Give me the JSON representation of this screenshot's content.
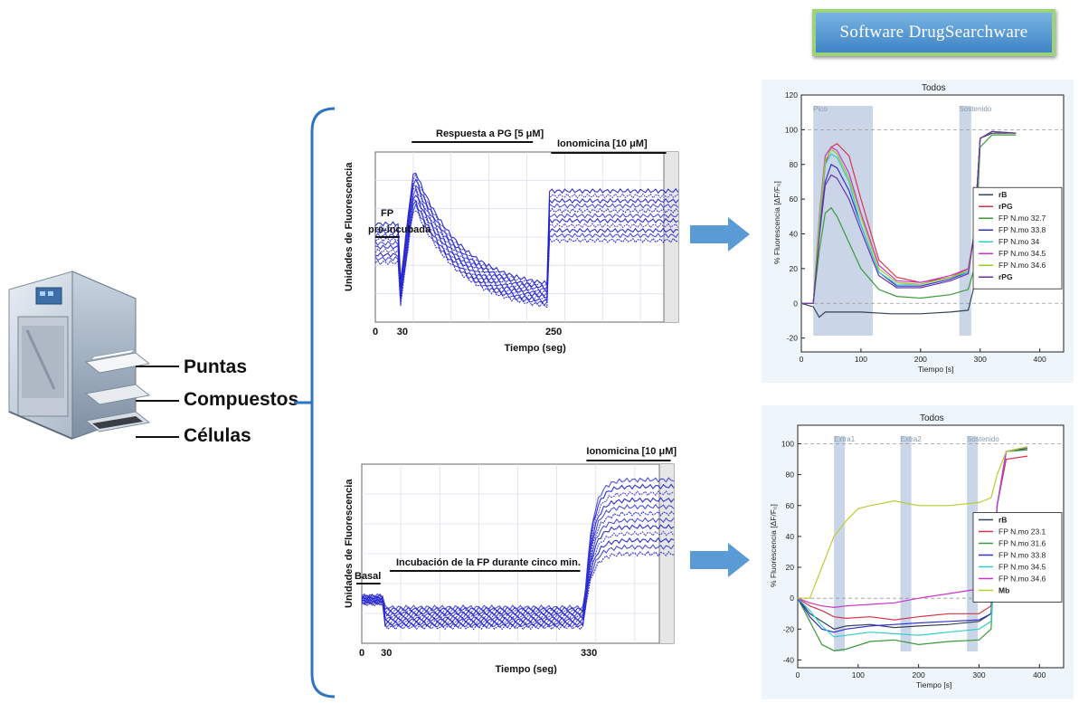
{
  "badge": {
    "label": "Software DrugSearchware"
  },
  "machine": {
    "labels": [
      "Puntas",
      "Compuestos",
      "Células"
    ]
  },
  "colors": {
    "accent_arrow": "#5b9bd5",
    "bracket": "#2f74c0",
    "trace": "#1b1bcc",
    "band": "#b8c8e0"
  },
  "top_trace": {
    "ylabel": "Unidades de Fluorescencia",
    "xlabel": "Tiempo (seg)",
    "xticks": [
      "0",
      "30",
      "250"
    ],
    "annotations": [
      "Respuesta a PG  [5 μM]",
      "Ionomicina  [10 μM]",
      "FP",
      "pre-incubada"
    ]
  },
  "bottom_trace": {
    "ylabel": "Unidades de Fluorescencia",
    "xlabel": "Tiempo (seg)",
    "xticks": [
      "0",
      "30",
      "330"
    ],
    "annotations": [
      "Ionomicina  [10 μM]",
      "Incubación de la FP durante cinco min.",
      "Basal"
    ]
  },
  "chart_data": [
    {
      "type": "line",
      "title": "Todos",
      "xlabel": "Tiempo [s]",
      "ylabel": "% Fluorescencia [ΔF/F₀]",
      "xlim": [
        0,
        440
      ],
      "ylim": [
        -28,
        120
      ],
      "xticks": [
        0,
        100,
        200,
        300,
        400
      ],
      "yticks": [
        -20,
        0,
        20,
        40,
        60,
        80,
        100,
        120
      ],
      "regions": [
        {
          "label": "Pico",
          "x": [
            20,
            120
          ]
        },
        {
          "label": "Sostenido",
          "x": [
            265,
            285
          ]
        }
      ],
      "legend_position": "right",
      "series": [
        {
          "name": "rB",
          "color": "#334455",
          "x": [
            0,
            20,
            30,
            40,
            60,
            100,
            150,
            200,
            250,
            280,
            290,
            300,
            320,
            360
          ],
          "y": [
            0,
            -2,
            -8,
            -5,
            -5,
            -5,
            -6,
            -6,
            -5,
            -4,
            10,
            95,
            98,
            98
          ]
        },
        {
          "name": "rPG",
          "color": "#d8344a",
          "x": [
            0,
            20,
            30,
            40,
            50,
            60,
            80,
            100,
            130,
            160,
            200,
            250,
            280,
            290,
            300,
            320,
            360
          ],
          "y": [
            0,
            0,
            40,
            80,
            90,
            92,
            85,
            60,
            25,
            15,
            12,
            15,
            20,
            40,
            95,
            99,
            98
          ]
        },
        {
          "name": "FP  N.mo 32.7",
          "color": "#3a9a3a",
          "x": [
            0,
            20,
            30,
            40,
            50,
            60,
            80,
            100,
            130,
            160,
            200,
            250,
            280,
            290,
            300,
            320,
            360
          ],
          "y": [
            0,
            0,
            30,
            52,
            55,
            50,
            35,
            20,
            8,
            4,
            3,
            5,
            8,
            20,
            90,
            97,
            97
          ]
        },
        {
          "name": "FP  N.mo 33.8",
          "color": "#3333cc",
          "x": [
            0,
            20,
            30,
            40,
            50,
            60,
            80,
            100,
            130,
            160,
            200,
            250,
            280,
            290,
            300,
            320,
            360
          ],
          "y": [
            0,
            0,
            40,
            70,
            80,
            78,
            65,
            45,
            18,
            10,
            10,
            14,
            18,
            40,
            95,
            99,
            98
          ]
        },
        {
          "name": "FP  N.mo 34",
          "color": "#33cccc",
          "x": [
            0,
            20,
            30,
            40,
            50,
            60,
            80,
            100,
            130,
            160,
            200,
            250,
            280,
            290,
            300,
            320,
            360
          ],
          "y": [
            0,
            0,
            45,
            80,
            86,
            84,
            70,
            45,
            18,
            11,
            11,
            15,
            18,
            40,
            95,
            99,
            98
          ]
        },
        {
          "name": "FP  N.mo 34.5",
          "color": "#cc33cc",
          "x": [
            0,
            20,
            30,
            40,
            50,
            60,
            80,
            100,
            130,
            160,
            200,
            250,
            280,
            290,
            300,
            320,
            360
          ],
          "y": [
            0,
            0,
            50,
            85,
            90,
            88,
            75,
            52,
            22,
            13,
            12,
            16,
            20,
            40,
            95,
            99,
            98
          ]
        },
        {
          "name": "FP  N.mo 34.6",
          "color": "#99cc22",
          "x": [
            0,
            20,
            30,
            40,
            50,
            60,
            80,
            100,
            130,
            160,
            200,
            250,
            280,
            290,
            300,
            320,
            360
          ],
          "y": [
            0,
            0,
            48,
            82,
            89,
            86,
            72,
            50,
            20,
            12,
            11,
            15,
            19,
            40,
            95,
            99,
            98
          ]
        },
        {
          "name": "rPG",
          "color": "#6633aa",
          "x": [
            0,
            20,
            30,
            40,
            50,
            60,
            80,
            100,
            130,
            160,
            200,
            250,
            280,
            290,
            300,
            320,
            360
          ],
          "y": [
            0,
            0,
            38,
            68,
            74,
            72,
            60,
            42,
            16,
            9,
            9,
            13,
            17,
            40,
            95,
            99,
            98
          ]
        }
      ]
    },
    {
      "type": "line",
      "title": "Todos",
      "xlabel": "Tiempo [s]",
      "ylabel": "% Fluorescencia [ΔF/F₀]",
      "xlim": [
        0,
        440
      ],
      "ylim": [
        -45,
        112
      ],
      "xticks": [
        0,
        100,
        200,
        300,
        400
      ],
      "yticks": [
        -40,
        -20,
        0,
        20,
        40,
        60,
        80,
        100
      ],
      "regions": [
        {
          "label": "Extra1",
          "x": [
            60,
            78
          ]
        },
        {
          "label": "Extra2",
          "x": [
            170,
            188
          ]
        },
        {
          "label": "Sostenido",
          "x": [
            280,
            298
          ]
        }
      ],
      "legend_position": "right",
      "series": [
        {
          "name": "rB",
          "color": "#334455",
          "x": [
            0,
            20,
            40,
            60,
            80,
            120,
            160,
            200,
            250,
            300,
            320,
            330,
            345,
            380
          ],
          "y": [
            0,
            -10,
            -15,
            -20,
            -18,
            -17,
            -19,
            -18,
            -17,
            -15,
            -10,
            60,
            95,
            97
          ]
        },
        {
          "name": "FP  N.mo 23.1",
          "color": "#d8344a",
          "x": [
            0,
            20,
            40,
            60,
            80,
            120,
            160,
            200,
            250,
            300,
            320,
            330,
            345,
            380
          ],
          "y": [
            0,
            -5,
            -8,
            -12,
            -13,
            -12,
            -14,
            -12,
            -10,
            -10,
            -5,
            60,
            90,
            92
          ]
        },
        {
          "name": "FP  N.mo 31.6",
          "color": "#3a9a3a",
          "x": [
            0,
            20,
            40,
            60,
            80,
            120,
            160,
            200,
            250,
            300,
            320,
            330,
            345,
            380
          ],
          "y": [
            0,
            -15,
            -30,
            -34,
            -33,
            -28,
            -27,
            -30,
            -28,
            -27,
            -20,
            60,
            95,
            96
          ]
        },
        {
          "name": "FP  N.mo 33.8",
          "color": "#3333cc",
          "x": [
            0,
            20,
            40,
            60,
            80,
            120,
            160,
            200,
            250,
            300,
            320,
            330,
            345,
            380
          ],
          "y": [
            0,
            -12,
            -20,
            -22,
            -20,
            -18,
            -17,
            -16,
            -15,
            -14,
            -10,
            60,
            95,
            98
          ]
        },
        {
          "name": "FP  N.mo 34.5",
          "color": "#33cccc",
          "x": [
            0,
            20,
            40,
            60,
            80,
            120,
            160,
            200,
            250,
            300,
            320,
            330,
            345,
            380
          ],
          "y": [
            0,
            -8,
            -18,
            -25,
            -24,
            -22,
            -23,
            -24,
            -22,
            -20,
            -15,
            60,
            95,
            98
          ]
        },
        {
          "name": "FP  N.mo 34.6",
          "color": "#cc33cc",
          "x": [
            0,
            20,
            40,
            60,
            80,
            120,
            160,
            200,
            250,
            300,
            320,
            330,
            345,
            380
          ],
          "y": [
            0,
            -3,
            -5,
            -6,
            -5,
            -4,
            -3,
            0,
            3,
            6,
            10,
            60,
            95,
            98
          ]
        },
        {
          "name": "Mb",
          "color": "#bbcc33",
          "x": [
            0,
            20,
            40,
            60,
            80,
            100,
            120,
            160,
            200,
            250,
            300,
            320,
            330,
            345,
            380
          ],
          "y": [
            0,
            0,
            20,
            40,
            50,
            58,
            60,
            63,
            60,
            60,
            62,
            65,
            80,
            95,
            98
          ]
        }
      ]
    }
  ]
}
